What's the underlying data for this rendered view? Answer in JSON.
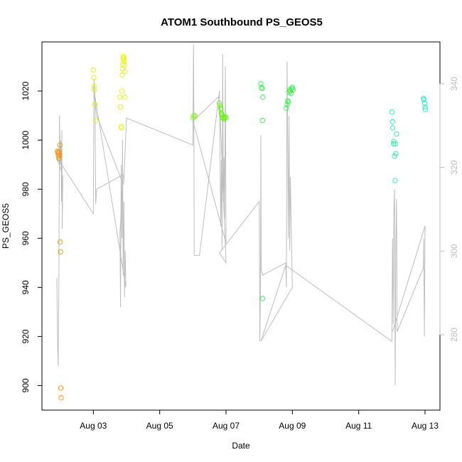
{
  "chart_data": {
    "type": "scatter",
    "title": "ATOM1 Southbound PS_GEOS5",
    "xlabel": "Date",
    "ylabel": "PS_GEOS5",
    "x_unit": "day of August 2016",
    "xlim": [
      1.45,
      13.45
    ],
    "ylim": [
      890,
      1040
    ],
    "x_ticks": [
      {
        "value": 3,
        "label": "Aug 03"
      },
      {
        "value": 5,
        "label": "Aug 05"
      },
      {
        "value": 7,
        "label": "Aug 07"
      },
      {
        "value": 9,
        "label": "Aug 09"
      },
      {
        "value": 11,
        "label": "Aug 11"
      },
      {
        "value": 13,
        "label": "Aug 13"
      }
    ],
    "y_ticks": [
      900,
      920,
      940,
      960,
      980,
      1000,
      1020
    ],
    "y2_ticks": [
      280,
      300,
      320,
      340
    ],
    "y2lim": [
      262,
      350
    ],
    "grid": false,
    "legend": "none",
    "point_style": "open-circle",
    "line_color": "#bebebe",
    "point_series": [
      {
        "color": "#ff8c00",
        "points": [
          [
            1.92,
            995.5
          ],
          [
            1.93,
            995
          ],
          [
            1.94,
            994.5
          ],
          [
            1.95,
            993.5
          ],
          [
            1.96,
            992.5
          ],
          [
            1.97,
            995.2
          ],
          [
            1.98,
            994
          ],
          [
            1.99,
            998
          ],
          [
            2.0,
            958.5
          ],
          [
            2.01,
            954.5
          ],
          [
            2.02,
            899
          ],
          [
            2.03,
            895
          ]
        ]
      },
      {
        "color": "#e4f00a",
        "points": [
          [
            3.0,
            1028.5
          ],
          [
            3.01,
            1025.5
          ],
          [
            3.02,
            1022
          ],
          [
            3.03,
            1020.5
          ],
          [
            3.05,
            1014.5
          ],
          [
            3.07,
            1008
          ],
          [
            3.8,
            1017.5
          ],
          [
            3.82,
            1013.5
          ],
          [
            3.84,
            1005.5
          ],
          [
            3.85,
            1005
          ],
          [
            3.86,
            1020
          ],
          [
            3.87,
            1026.5
          ],
          [
            3.88,
            1029
          ],
          [
            3.89,
            1031
          ],
          [
            3.9,
            1033.5
          ],
          [
            3.91,
            1034
          ],
          [
            3.92,
            1033
          ],
          [
            3.93,
            1032
          ],
          [
            3.94,
            1030.5
          ],
          [
            3.95,
            1028
          ],
          [
            3.96,
            1017.5
          ]
        ]
      },
      {
        "color": "#8cf028",
        "points": [
          [
            6.0,
            1009
          ],
          [
            6.02,
            1010
          ],
          [
            6.04,
            1009.5
          ],
          [
            6.06,
            1010
          ]
        ]
      },
      {
        "color": "#6af01a",
        "points": [
          [
            6.8,
            1015
          ],
          [
            6.82,
            1014
          ],
          [
            6.84,
            1013
          ],
          [
            6.85,
            1012.5
          ],
          [
            6.86,
            1011
          ],
          [
            6.87,
            1010.5
          ],
          [
            6.88,
            1010
          ],
          [
            6.9,
            1009
          ],
          [
            6.92,
            1009.5
          ],
          [
            6.94,
            1008.5
          ],
          [
            6.96,
            1009
          ],
          [
            6.98,
            1009.5
          ],
          [
            7.0,
            1009
          ]
        ]
      },
      {
        "color": "#2ef046",
        "points": [
          [
            8.05,
            1023
          ],
          [
            8.07,
            1021.5
          ],
          [
            8.09,
            1021
          ],
          [
            8.11,
            1017.5
          ],
          [
            8.1,
            1008
          ],
          [
            8.1,
            935.5
          ],
          [
            8.82,
            1013
          ],
          [
            8.84,
            1014.5
          ],
          [
            8.86,
            1016
          ],
          [
            8.88,
            1015.5
          ],
          [
            8.9,
            1019.5
          ],
          [
            8.92,
            1020.5
          ],
          [
            8.94,
            1020
          ],
          [
            8.96,
            1019
          ],
          [
            8.98,
            1021
          ],
          [
            9.0,
            1021.5
          ],
          [
            9.02,
            1020.5
          ]
        ]
      },
      {
        "color": "#1ef0a0",
        "points": [
          [
            12.0,
            1011.5
          ],
          [
            12.02,
            1007.5
          ],
          [
            12.03,
            1005
          ],
          [
            12.05,
            998.5
          ],
          [
            12.06,
            999.5
          ],
          [
            12.08,
            993.5
          ],
          [
            12.1,
            998.5
          ],
          [
            12.12,
            994.5
          ],
          [
            12.14,
            1002.5
          ],
          [
            12.1,
            983.5
          ]
        ]
      },
      {
        "color": "#16f0c8",
        "points": [
          [
            12.95,
            1017
          ],
          [
            12.97,
            1016.5
          ],
          [
            12.99,
            1015
          ],
          [
            13.0,
            1013.5
          ],
          [
            13.01,
            1012.5
          ]
        ]
      }
    ],
    "line_series": {
      "name": "",
      "points": [
        [
          1.9,
          944
        ],
        [
          1.92,
          918
        ],
        [
          1.94,
          908
        ],
        [
          1.96,
          940
        ],
        [
          1.98,
          1010
        ],
        [
          2.0,
          990
        ],
        [
          2.02,
          1000
        ],
        [
          2.04,
          975
        ],
        [
          2.05,
          1004
        ],
        [
          2.06,
          964
        ],
        [
          2.08,
          985
        ],
        [
          1.9,
          993
        ],
        [
          3.0,
          970
        ],
        [
          3.02,
          1025
        ],
        [
          3.04,
          1020
        ],
        [
          3.05,
          1015
        ],
        [
          3.07,
          974
        ],
        [
          3.1,
          980
        ],
        [
          3.9,
          986
        ],
        [
          3.8,
          962
        ],
        [
          3.82,
          932
        ],
        [
          3.84,
          990
        ],
        [
          3.86,
          960
        ],
        [
          3.88,
          1000
        ],
        [
          3.9,
          945
        ],
        [
          3.92,
          975
        ],
        [
          3.94,
          936
        ],
        [
          3.96,
          955
        ],
        [
          3.98,
          940
        ],
        [
          3.0,
          1022
        ],
        [
          3.1,
          1010
        ],
        [
          3.9,
          982
        ],
        [
          3.92,
          983
        ],
        [
          4.0,
          1009
        ],
        [
          6.0,
          998
        ],
        [
          6.02,
          1039
        ],
        [
          6.03,
          1015
        ],
        [
          6.04,
          953
        ],
        [
          6.2,
          953
        ],
        [
          6.8,
          1020
        ],
        [
          6.82,
          995
        ],
        [
          6.84,
          965
        ],
        [
          6.86,
          992
        ],
        [
          6.88,
          955
        ],
        [
          6.9,
          1035
        ],
        [
          6.92,
          975
        ],
        [
          6.94,
          993
        ],
        [
          6.96,
          968
        ],
        [
          6.98,
          1030
        ],
        [
          7.0,
          958
        ],
        [
          6.0,
          1008
        ],
        [
          6.1,
          1009
        ],
        [
          6.8,
          1018
        ],
        [
          7.0,
          950
        ],
        [
          6.8,
          954
        ],
        [
          8.0,
          975
        ],
        [
          8.02,
          918
        ],
        [
          8.04,
          940
        ],
        [
          8.05,
          1002
        ],
        [
          8.06,
          947
        ],
        [
          8.1,
          945
        ],
        [
          8.8,
          950
        ],
        [
          8.82,
          940
        ],
        [
          8.84,
          1032
        ],
        [
          8.86,
          998
        ],
        [
          8.88,
          960
        ],
        [
          8.9,
          1010
        ],
        [
          8.92,
          955
        ],
        [
          8.94,
          985
        ],
        [
          9.0,
          940
        ],
        [
          8.05,
          918
        ],
        [
          8.8,
          949
        ],
        [
          12.0,
          918
        ],
        [
          12.02,
          960
        ],
        [
          12.04,
          925
        ],
        [
          12.06,
          970
        ],
        [
          12.08,
          980
        ],
        [
          12.1,
          900
        ],
        [
          12.12,
          955
        ],
        [
          12.14,
          976
        ],
        [
          12.16,
          922
        ],
        [
          12.95,
          948
        ],
        [
          12.96,
          960
        ],
        [
          12.98,
          920
        ],
        [
          13.0,
          965
        ],
        [
          12.02,
          922
        ]
      ]
    }
  }
}
